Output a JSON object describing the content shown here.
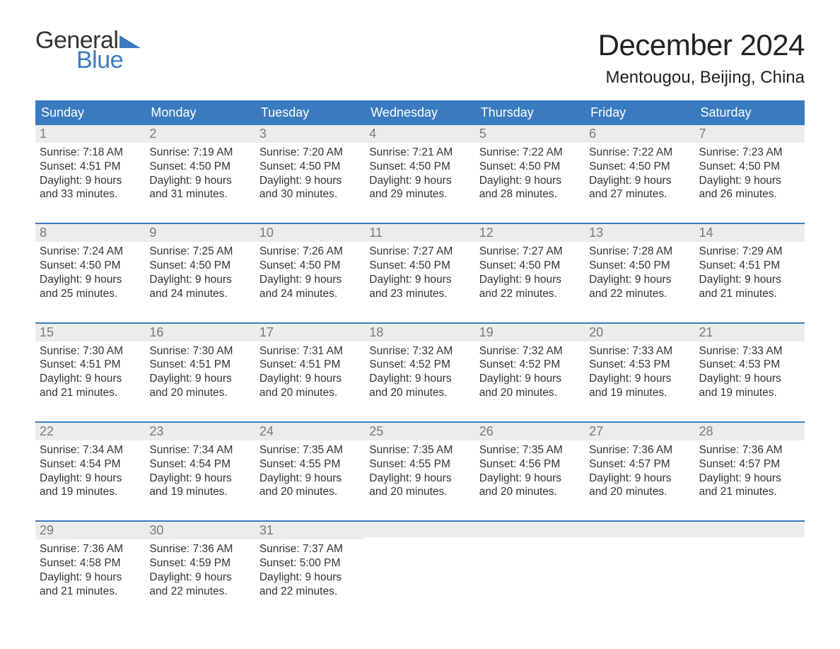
{
  "logo": {
    "text1": "General",
    "text2": "Blue",
    "tri_color": "#3a7bbf"
  },
  "title": "December 2024",
  "location": "Mentougou, Beijing, China",
  "colors": {
    "header_bg": "#3a7bbf",
    "header_text": "#ffffff",
    "daynum_bg": "#ececec",
    "daynum_text": "#7a7a7a",
    "body_text": "#333333",
    "week_border": "#3a7bbf",
    "page_bg": "#ffffff"
  },
  "fonts": {
    "title_size_pt": 32,
    "location_size_pt": 18,
    "header_size_pt": 14,
    "daynum_size_pt": 14,
    "body_size_pt": 12
  },
  "day_headers": [
    "Sunday",
    "Monday",
    "Tuesday",
    "Wednesday",
    "Thursday",
    "Friday",
    "Saturday"
  ],
  "weeks": [
    [
      {
        "n": "1",
        "sr": "Sunrise: 7:18 AM",
        "ss": "Sunset: 4:51 PM",
        "d1": "Daylight: 9 hours",
        "d2": "and 33 minutes."
      },
      {
        "n": "2",
        "sr": "Sunrise: 7:19 AM",
        "ss": "Sunset: 4:50 PM",
        "d1": "Daylight: 9 hours",
        "d2": "and 31 minutes."
      },
      {
        "n": "3",
        "sr": "Sunrise: 7:20 AM",
        "ss": "Sunset: 4:50 PM",
        "d1": "Daylight: 9 hours",
        "d2": "and 30 minutes."
      },
      {
        "n": "4",
        "sr": "Sunrise: 7:21 AM",
        "ss": "Sunset: 4:50 PM",
        "d1": "Daylight: 9 hours",
        "d2": "and 29 minutes."
      },
      {
        "n": "5",
        "sr": "Sunrise: 7:22 AM",
        "ss": "Sunset: 4:50 PM",
        "d1": "Daylight: 9 hours",
        "d2": "and 28 minutes."
      },
      {
        "n": "6",
        "sr": "Sunrise: 7:22 AM",
        "ss": "Sunset: 4:50 PM",
        "d1": "Daylight: 9 hours",
        "d2": "and 27 minutes."
      },
      {
        "n": "7",
        "sr": "Sunrise: 7:23 AM",
        "ss": "Sunset: 4:50 PM",
        "d1": "Daylight: 9 hours",
        "d2": "and 26 minutes."
      }
    ],
    [
      {
        "n": "8",
        "sr": "Sunrise: 7:24 AM",
        "ss": "Sunset: 4:50 PM",
        "d1": "Daylight: 9 hours",
        "d2": "and 25 minutes."
      },
      {
        "n": "9",
        "sr": "Sunrise: 7:25 AM",
        "ss": "Sunset: 4:50 PM",
        "d1": "Daylight: 9 hours",
        "d2": "and 24 minutes."
      },
      {
        "n": "10",
        "sr": "Sunrise: 7:26 AM",
        "ss": "Sunset: 4:50 PM",
        "d1": "Daylight: 9 hours",
        "d2": "and 24 minutes."
      },
      {
        "n": "11",
        "sr": "Sunrise: 7:27 AM",
        "ss": "Sunset: 4:50 PM",
        "d1": "Daylight: 9 hours",
        "d2": "and 23 minutes."
      },
      {
        "n": "12",
        "sr": "Sunrise: 7:27 AM",
        "ss": "Sunset: 4:50 PM",
        "d1": "Daylight: 9 hours",
        "d2": "and 22 minutes."
      },
      {
        "n": "13",
        "sr": "Sunrise: 7:28 AM",
        "ss": "Sunset: 4:50 PM",
        "d1": "Daylight: 9 hours",
        "d2": "and 22 minutes."
      },
      {
        "n": "14",
        "sr": "Sunrise: 7:29 AM",
        "ss": "Sunset: 4:51 PM",
        "d1": "Daylight: 9 hours",
        "d2": "and 21 minutes."
      }
    ],
    [
      {
        "n": "15",
        "sr": "Sunrise: 7:30 AM",
        "ss": "Sunset: 4:51 PM",
        "d1": "Daylight: 9 hours",
        "d2": "and 21 minutes."
      },
      {
        "n": "16",
        "sr": "Sunrise: 7:30 AM",
        "ss": "Sunset: 4:51 PM",
        "d1": "Daylight: 9 hours",
        "d2": "and 20 minutes."
      },
      {
        "n": "17",
        "sr": "Sunrise: 7:31 AM",
        "ss": "Sunset: 4:51 PM",
        "d1": "Daylight: 9 hours",
        "d2": "and 20 minutes."
      },
      {
        "n": "18",
        "sr": "Sunrise: 7:32 AM",
        "ss": "Sunset: 4:52 PM",
        "d1": "Daylight: 9 hours",
        "d2": "and 20 minutes."
      },
      {
        "n": "19",
        "sr": "Sunrise: 7:32 AM",
        "ss": "Sunset: 4:52 PM",
        "d1": "Daylight: 9 hours",
        "d2": "and 20 minutes."
      },
      {
        "n": "20",
        "sr": "Sunrise: 7:33 AM",
        "ss": "Sunset: 4:53 PM",
        "d1": "Daylight: 9 hours",
        "d2": "and 19 minutes."
      },
      {
        "n": "21",
        "sr": "Sunrise: 7:33 AM",
        "ss": "Sunset: 4:53 PM",
        "d1": "Daylight: 9 hours",
        "d2": "and 19 minutes."
      }
    ],
    [
      {
        "n": "22",
        "sr": "Sunrise: 7:34 AM",
        "ss": "Sunset: 4:54 PM",
        "d1": "Daylight: 9 hours",
        "d2": "and 19 minutes."
      },
      {
        "n": "23",
        "sr": "Sunrise: 7:34 AM",
        "ss": "Sunset: 4:54 PM",
        "d1": "Daylight: 9 hours",
        "d2": "and 19 minutes."
      },
      {
        "n": "24",
        "sr": "Sunrise: 7:35 AM",
        "ss": "Sunset: 4:55 PM",
        "d1": "Daylight: 9 hours",
        "d2": "and 20 minutes."
      },
      {
        "n": "25",
        "sr": "Sunrise: 7:35 AM",
        "ss": "Sunset: 4:55 PM",
        "d1": "Daylight: 9 hours",
        "d2": "and 20 minutes."
      },
      {
        "n": "26",
        "sr": "Sunrise: 7:35 AM",
        "ss": "Sunset: 4:56 PM",
        "d1": "Daylight: 9 hours",
        "d2": "and 20 minutes."
      },
      {
        "n": "27",
        "sr": "Sunrise: 7:36 AM",
        "ss": "Sunset: 4:57 PM",
        "d1": "Daylight: 9 hours",
        "d2": "and 20 minutes."
      },
      {
        "n": "28",
        "sr": "Sunrise: 7:36 AM",
        "ss": "Sunset: 4:57 PM",
        "d1": "Daylight: 9 hours",
        "d2": "and 21 minutes."
      }
    ],
    [
      {
        "n": "29",
        "sr": "Sunrise: 7:36 AM",
        "ss": "Sunset: 4:58 PM",
        "d1": "Daylight: 9 hours",
        "d2": "and 21 minutes."
      },
      {
        "n": "30",
        "sr": "Sunrise: 7:36 AM",
        "ss": "Sunset: 4:59 PM",
        "d1": "Daylight: 9 hours",
        "d2": "and 22 minutes."
      },
      {
        "n": "31",
        "sr": "Sunrise: 7:37 AM",
        "ss": "Sunset: 5:00 PM",
        "d1": "Daylight: 9 hours",
        "d2": "and 22 minutes."
      },
      null,
      null,
      null,
      null
    ]
  ]
}
